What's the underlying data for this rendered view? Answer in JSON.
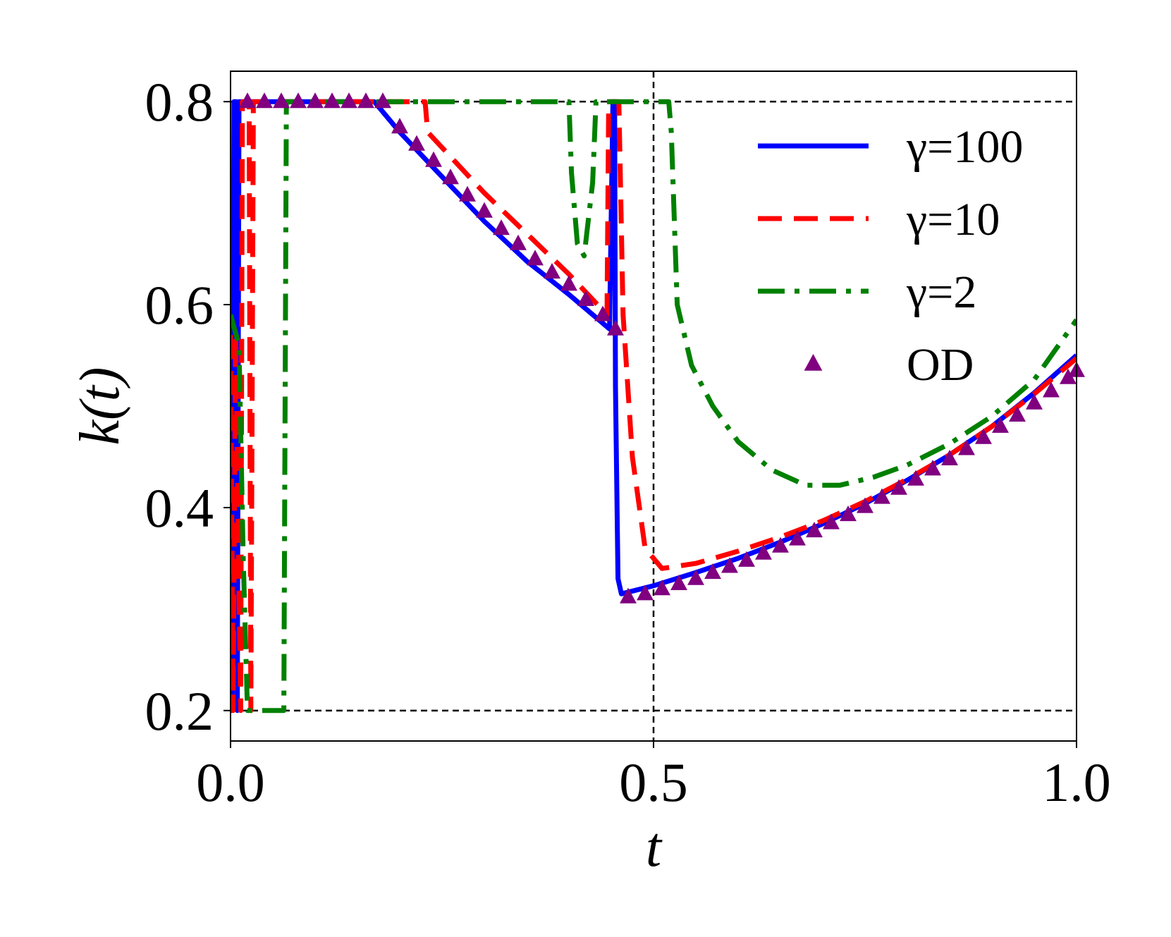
{
  "chart_data": {
    "type": "line",
    "xlabel": "t",
    "ylabel": "k(t)",
    "xlim": [
      0.0,
      1.0
    ],
    "ylim": [
      0.17,
      0.83
    ],
    "xticks": [
      {
        "value": 0.0,
        "label": "0.0"
      },
      {
        "value": 0.5,
        "label": "0.5"
      },
      {
        "value": 1.0,
        "label": "1.0"
      }
    ],
    "yticks": [
      {
        "value": 0.2,
        "label": "0.2"
      },
      {
        "value": 0.4,
        "label": "0.4"
      },
      {
        "value": 0.6,
        "label": "0.6"
      },
      {
        "value": 0.8,
        "label": "0.8"
      }
    ],
    "grid": false,
    "legend_position": "top-right",
    "reference_lines": [
      {
        "orientation": "horizontal",
        "value": 0.8
      },
      {
        "orientation": "horizontal",
        "value": 0.2
      },
      {
        "orientation": "vertical",
        "value": 0.5
      }
    ],
    "series": [
      {
        "name": "γ=100",
        "style": "solid",
        "color": "#0000ff",
        "points": [
          [
            0.0,
            0.64
          ],
          [
            0.002,
            0.2
          ],
          [
            0.004,
            0.8
          ],
          [
            0.007,
            0.8
          ],
          [
            0.008,
            0.2
          ],
          [
            0.01,
            0.8
          ],
          [
            0.17,
            0.8
          ],
          [
            0.2,
            0.77
          ],
          [
            0.25,
            0.726
          ],
          [
            0.3,
            0.682
          ],
          [
            0.35,
            0.643
          ],
          [
            0.4,
            0.61
          ],
          [
            0.448,
            0.576
          ],
          [
            0.452,
            0.8
          ],
          [
            0.454,
            0.8
          ],
          [
            0.455,
            0.52
          ],
          [
            0.458,
            0.33
          ],
          [
            0.462,
            0.315
          ],
          [
            0.5,
            0.323
          ],
          [
            0.55,
            0.336
          ],
          [
            0.6,
            0.35
          ],
          [
            0.65,
            0.366
          ],
          [
            0.7,
            0.384
          ],
          [
            0.75,
            0.404
          ],
          [
            0.8,
            0.427
          ],
          [
            0.85,
            0.452
          ],
          [
            0.9,
            0.48
          ],
          [
            0.95,
            0.513
          ],
          [
            1.0,
            0.55
          ]
        ]
      },
      {
        "name": "γ=10",
        "style": "dashed",
        "color": "#ff0000",
        "points": [
          [
            0.0,
            0.57
          ],
          [
            0.003,
            0.2
          ],
          [
            0.006,
            0.57
          ],
          [
            0.012,
            0.2
          ],
          [
            0.014,
            0.8
          ],
          [
            0.022,
            0.8
          ],
          [
            0.024,
            0.2
          ],
          [
            0.027,
            0.8
          ],
          [
            0.23,
            0.8
          ],
          [
            0.233,
            0.77
          ],
          [
            0.3,
            0.71
          ],
          [
            0.35,
            0.67
          ],
          [
            0.4,
            0.63
          ],
          [
            0.445,
            0.59
          ],
          [
            0.447,
            0.8
          ],
          [
            0.459,
            0.8
          ],
          [
            0.464,
            0.59
          ],
          [
            0.475,
            0.45
          ],
          [
            0.49,
            0.36
          ],
          [
            0.51,
            0.34
          ],
          [
            0.55,
            0.345
          ],
          [
            0.6,
            0.357
          ],
          [
            0.65,
            0.371
          ],
          [
            0.7,
            0.387
          ],
          [
            0.75,
            0.406
          ],
          [
            0.8,
            0.428
          ],
          [
            0.85,
            0.452
          ],
          [
            0.9,
            0.48
          ],
          [
            0.95,
            0.512
          ],
          [
            1.0,
            0.547
          ]
        ]
      },
      {
        "name": "γ=2",
        "style": "dashdot",
        "color": "#008000",
        "points": [
          [
            0.0,
            0.59
          ],
          [
            0.01,
            0.56
          ],
          [
            0.015,
            0.35
          ],
          [
            0.02,
            0.2
          ],
          [
            0.063,
            0.2
          ],
          [
            0.066,
            0.8
          ],
          [
            0.4,
            0.8
          ],
          [
            0.403,
            0.73
          ],
          [
            0.41,
            0.66
          ],
          [
            0.418,
            0.648
          ],
          [
            0.428,
            0.72
          ],
          [
            0.432,
            0.8
          ],
          [
            0.518,
            0.8
          ],
          [
            0.521,
            0.77
          ],
          [
            0.528,
            0.6
          ],
          [
            0.545,
            0.54
          ],
          [
            0.57,
            0.5
          ],
          [
            0.6,
            0.465
          ],
          [
            0.64,
            0.437
          ],
          [
            0.68,
            0.422
          ],
          [
            0.72,
            0.422
          ],
          [
            0.76,
            0.43
          ],
          [
            0.8,
            0.442
          ],
          [
            0.85,
            0.463
          ],
          [
            0.9,
            0.49
          ],
          [
            0.95,
            0.526
          ],
          [
            1.0,
            0.585
          ]
        ]
      },
      {
        "name": "OD",
        "style": "marker-triangle",
        "color": "#800080",
        "points": [
          [
            0.02,
            0.8
          ],
          [
            0.04,
            0.8
          ],
          [
            0.06,
            0.8
          ],
          [
            0.08,
            0.8
          ],
          [
            0.1,
            0.8
          ],
          [
            0.12,
            0.8
          ],
          [
            0.14,
            0.8
          ],
          [
            0.16,
            0.8
          ],
          [
            0.18,
            0.8
          ],
          [
            0.2,
            0.775
          ],
          [
            0.22,
            0.758
          ],
          [
            0.24,
            0.742
          ],
          [
            0.26,
            0.725
          ],
          [
            0.28,
            0.708
          ],
          [
            0.3,
            0.692
          ],
          [
            0.32,
            0.675
          ],
          [
            0.34,
            0.66
          ],
          [
            0.36,
            0.645
          ],
          [
            0.38,
            0.632
          ],
          [
            0.4,
            0.62
          ],
          [
            0.42,
            0.605
          ],
          [
            0.44,
            0.59
          ],
          [
            0.455,
            0.576
          ],
          [
            0.47,
            0.312
          ],
          [
            0.49,
            0.315
          ],
          [
            0.51,
            0.32
          ],
          [
            0.53,
            0.325
          ],
          [
            0.55,
            0.33
          ],
          [
            0.57,
            0.336
          ],
          [
            0.59,
            0.342
          ],
          [
            0.61,
            0.348
          ],
          [
            0.63,
            0.355
          ],
          [
            0.65,
            0.362
          ],
          [
            0.67,
            0.369
          ],
          [
            0.69,
            0.377
          ],
          [
            0.71,
            0.385
          ],
          [
            0.73,
            0.393
          ],
          [
            0.75,
            0.401
          ],
          [
            0.77,
            0.41
          ],
          [
            0.79,
            0.419
          ],
          [
            0.81,
            0.428
          ],
          [
            0.83,
            0.438
          ],
          [
            0.85,
            0.448
          ],
          [
            0.87,
            0.458
          ],
          [
            0.89,
            0.469
          ],
          [
            0.91,
            0.48
          ],
          [
            0.93,
            0.491
          ],
          [
            0.95,
            0.503
          ],
          [
            0.97,
            0.515
          ],
          [
            0.99,
            0.528
          ],
          [
            1.0,
            0.535
          ]
        ]
      }
    ]
  }
}
